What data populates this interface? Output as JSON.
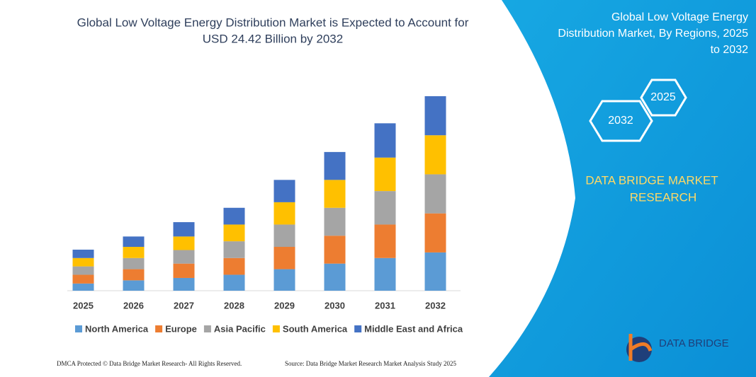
{
  "chart_data": {
    "type": "stacked-bar",
    "title": [
      "Global Low Voltage Energy Distribution Market is Expected to Account for",
      "USD 24.42 Billion by 2032"
    ],
    "categories": [
      "2025",
      "2026",
      "2027",
      "2028",
      "2029",
      "2030",
      "2031",
      "2032"
    ],
    "series": [
      {
        "name": "North America",
        "color": "#5b9bd5",
        "values": [
          0.9,
          1.3,
          1.6,
          2.0,
          2.7,
          3.4,
          4.1,
          4.8
        ]
      },
      {
        "name": "Europe",
        "color": "#ed7d31",
        "values": [
          1.1,
          1.4,
          1.8,
          2.1,
          2.8,
          3.5,
          4.2,
          4.9
        ]
      },
      {
        "name": "Asia Pacific",
        "color": "#a5a5a5",
        "values": [
          1.05,
          1.4,
          1.7,
          2.1,
          2.8,
          3.5,
          4.2,
          4.9
        ]
      },
      {
        "name": "South America",
        "color": "#ffc000",
        "values": [
          1.05,
          1.4,
          1.7,
          2.1,
          2.8,
          3.5,
          4.2,
          4.9
        ]
      },
      {
        "name": "Middle East and Africa",
        "color": "#4472c4",
        "values": [
          1.05,
          1.3,
          1.8,
          2.1,
          2.8,
          3.5,
          4.3,
          4.9
        ]
      }
    ],
    "legend": "bottom"
  },
  "panel": {
    "title": [
      "Global Low Voltage Energy",
      "Distribution Market, By Regions, 2025",
      "to 2032"
    ],
    "hex_labels": [
      "2025",
      "2032"
    ],
    "brand": [
      "DATA BRIDGE MARKET",
      "RESEARCH"
    ],
    "logo": "DATA BRIDGE"
  },
  "footer": {
    "left": "DMCA Protected © Data Bridge Market Research-  All Rights Reserved.",
    "right": "Source: Data Bridge Market Research  Market Analysis Study 2025"
  }
}
